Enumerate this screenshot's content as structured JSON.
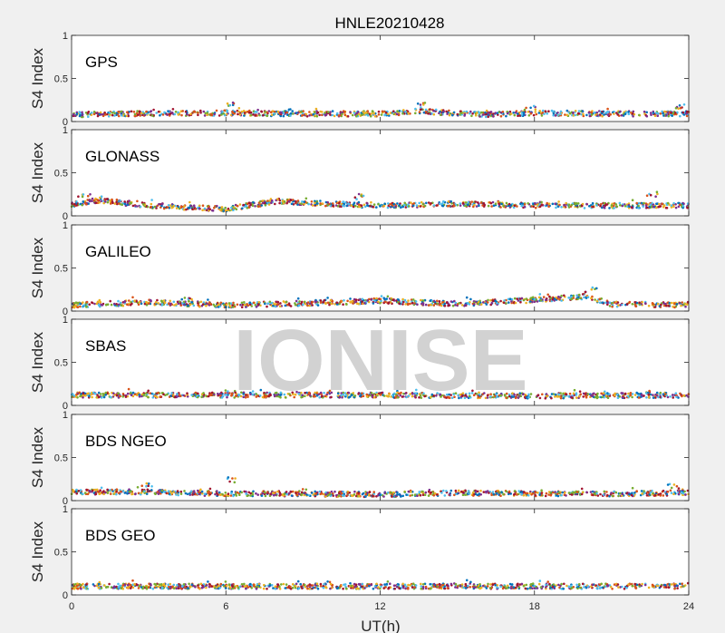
{
  "chart_data": {
    "type": "scatter",
    "title": "HNLE20210428",
    "xlabel": "UT(h)",
    "ylabel": "S4 Index",
    "xlim": [
      0,
      24
    ],
    "ylim": [
      0,
      1
    ],
    "xticks": [
      0,
      6,
      12,
      18,
      24
    ],
    "yticks": [
      0,
      0.5,
      1
    ],
    "watermark": "IONISE",
    "series_colors": [
      "#0072bd",
      "#d95319",
      "#edb120",
      "#7e2f8e",
      "#77ac30",
      "#4dbeee",
      "#a2142f"
    ],
    "panels": [
      {
        "label": "GPS",
        "typical_s4": [
          [
            0,
            0.08
          ],
          [
            2,
            0.09
          ],
          [
            6,
            0.1
          ],
          [
            9,
            0.09
          ],
          [
            12,
            0.09
          ],
          [
            13.5,
            0.12
          ],
          [
            16,
            0.08
          ],
          [
            18,
            0.1
          ],
          [
            21,
            0.09
          ],
          [
            24,
            0.09
          ]
        ],
        "peaks": [
          [
            6.2,
            0.22
          ],
          [
            13.5,
            0.22
          ],
          [
            17.8,
            0.19
          ],
          [
            23.6,
            0.2
          ]
        ]
      },
      {
        "label": "GLONASS",
        "typical_s4": [
          [
            0,
            0.13
          ],
          [
            1,
            0.18
          ],
          [
            3,
            0.12
          ],
          [
            6,
            0.08
          ],
          [
            8,
            0.17
          ],
          [
            10,
            0.14
          ],
          [
            12,
            0.12
          ],
          [
            15,
            0.14
          ],
          [
            18,
            0.12
          ],
          [
            21,
            0.12
          ],
          [
            24,
            0.12
          ]
        ],
        "peaks": [
          [
            0.5,
            0.27
          ],
          [
            11.2,
            0.26
          ],
          [
            22.6,
            0.28
          ]
        ]
      },
      {
        "label": "GALILEO",
        "typical_s4": [
          [
            0,
            0.07
          ],
          [
            3,
            0.1
          ],
          [
            6,
            0.07
          ],
          [
            9,
            0.09
          ],
          [
            12,
            0.12
          ],
          [
            15,
            0.08
          ],
          [
            18,
            0.13
          ],
          [
            20,
            0.17
          ],
          [
            21,
            0.08
          ],
          [
            24,
            0.07
          ]
        ],
        "peaks": [
          [
            4.5,
            0.16
          ],
          [
            12.3,
            0.18
          ],
          [
            20.2,
            0.28
          ]
        ]
      },
      {
        "label": "SBAS",
        "typical_s4": [
          [
            0,
            0.12
          ],
          [
            6,
            0.12
          ],
          [
            12,
            0.12
          ],
          [
            18,
            0.11
          ],
          [
            24,
            0.12
          ]
        ],
        "peaks": [
          [
            6.3,
            0.17
          ],
          [
            22.4,
            0.17
          ]
        ]
      },
      {
        "label": "BDS NGEO",
        "typical_s4": [
          [
            0,
            0.1
          ],
          [
            3,
            0.1
          ],
          [
            6,
            0.08
          ],
          [
            9,
            0.08
          ],
          [
            12,
            0.07
          ],
          [
            15,
            0.09
          ],
          [
            18,
            0.08
          ],
          [
            21,
            0.08
          ],
          [
            24,
            0.09
          ]
        ],
        "peaks": [
          [
            6.2,
            0.27
          ],
          [
            2.8,
            0.2
          ],
          [
            23.4,
            0.2
          ]
        ]
      },
      {
        "label": "BDS GEO",
        "typical_s4": [
          [
            0,
            0.1
          ],
          [
            6,
            0.1
          ],
          [
            12,
            0.1
          ],
          [
            18,
            0.1
          ],
          [
            24,
            0.1
          ]
        ],
        "peaks": [
          [
            0.6,
            0.13
          ],
          [
            15.3,
            0.13
          ]
        ]
      }
    ]
  }
}
